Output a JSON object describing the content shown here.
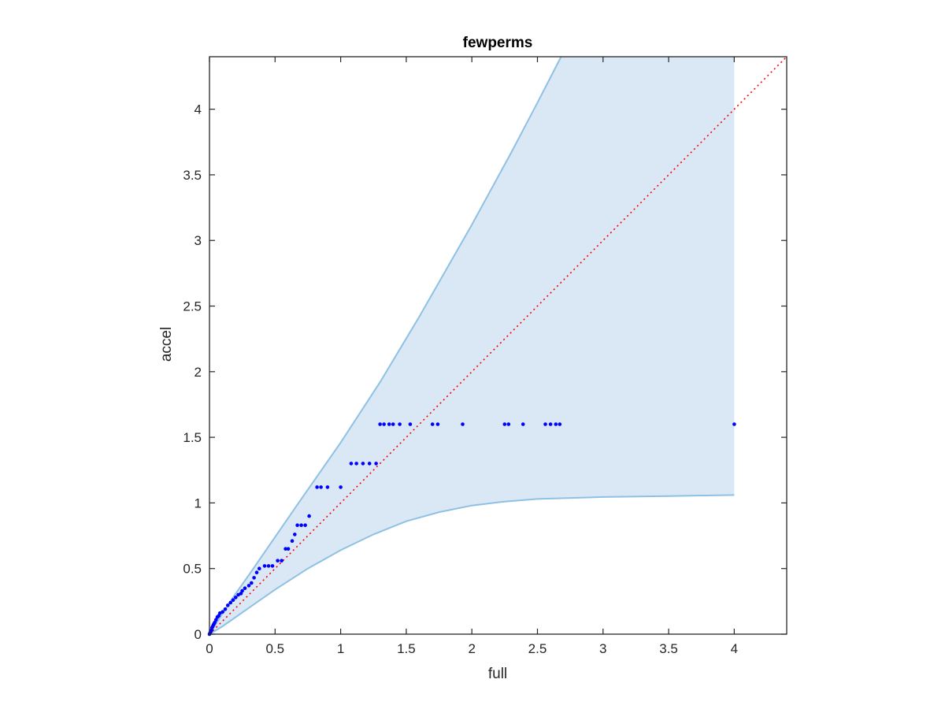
{
  "chart_data": {
    "type": "scatter",
    "title": "fewperms",
    "xlabel": "full",
    "ylabel": "accel",
    "xlim": [
      0,
      4.4
    ],
    "ylim": [
      0,
      4.4
    ],
    "xticks": [
      0,
      0.5,
      1,
      1.5,
      2,
      2.5,
      3,
      3.5,
      4
    ],
    "yticks": [
      0,
      0.5,
      1,
      1.5,
      2,
      2.5,
      3,
      3.5,
      4
    ],
    "xtick_labels": [
      "0",
      "0.5",
      "1",
      "1.5",
      "2",
      "2.5",
      "3",
      "3.5",
      "4"
    ],
    "ytick_labels": [
      "0",
      "0.5",
      "1",
      "1.5",
      "2",
      "2.5",
      "3",
      "3.5",
      "4"
    ],
    "grid": false,
    "box": true,
    "colors": {
      "points": "#0000ff",
      "band_fill": "#d9e8f4",
      "band_edge": "#8ec1e3",
      "reference_line": "#ff0000",
      "axes": "#262626"
    },
    "band": {
      "upper": [
        {
          "x": 0,
          "y": 0
        },
        {
          "x": 0.1,
          "y": 0.16
        },
        {
          "x": 0.2,
          "y": 0.31
        },
        {
          "x": 0.3,
          "y": 0.45
        },
        {
          "x": 0.5,
          "y": 0.74
        },
        {
          "x": 0.7,
          "y": 1.03
        },
        {
          "x": 1.0,
          "y": 1.46
        },
        {
          "x": 1.3,
          "y": 1.92
        },
        {
          "x": 1.6,
          "y": 2.42
        },
        {
          "x": 2.0,
          "y": 3.12
        },
        {
          "x": 2.3,
          "y": 3.67
        },
        {
          "x": 2.5,
          "y": 4.05
        },
        {
          "x": 2.68,
          "y": 4.4
        },
        {
          "x": 4.0,
          "y": 4.4
        }
      ],
      "lower": [
        {
          "x": 0,
          "y": 0
        },
        {
          "x": 0.1,
          "y": 0.06
        },
        {
          "x": 0.3,
          "y": 0.2
        },
        {
          "x": 0.5,
          "y": 0.34
        },
        {
          "x": 0.75,
          "y": 0.5
        },
        {
          "x": 1.0,
          "y": 0.64
        },
        {
          "x": 1.25,
          "y": 0.76
        },
        {
          "x": 1.5,
          "y": 0.86
        },
        {
          "x": 1.75,
          "y": 0.93
        },
        {
          "x": 2.0,
          "y": 0.98
        },
        {
          "x": 2.25,
          "y": 1.01
        },
        {
          "x": 2.5,
          "y": 1.03
        },
        {
          "x": 3.0,
          "y": 1.045
        },
        {
          "x": 3.5,
          "y": 1.052
        },
        {
          "x": 4.0,
          "y": 1.06
        }
      ]
    },
    "reference_line": {
      "style": "dotted",
      "points": [
        {
          "x": 0,
          "y": 0
        },
        {
          "x": 4.4,
          "y": 4.4
        }
      ]
    },
    "series": [
      {
        "points": [
          {
            "x": 0.0,
            "y": 0.0
          },
          {
            "x": 0.005,
            "y": 0.01
          },
          {
            "x": 0.01,
            "y": 0.02
          },
          {
            "x": 0.015,
            "y": 0.03
          },
          {
            "x": 0.02,
            "y": 0.05
          },
          {
            "x": 0.025,
            "y": 0.06
          },
          {
            "x": 0.03,
            "y": 0.07
          },
          {
            "x": 0.035,
            "y": 0.08
          },
          {
            "x": 0.04,
            "y": 0.09
          },
          {
            "x": 0.05,
            "y": 0.11
          },
          {
            "x": 0.06,
            "y": 0.13
          },
          {
            "x": 0.07,
            "y": 0.14
          },
          {
            "x": 0.08,
            "y": 0.16
          },
          {
            "x": 0.1,
            "y": 0.17
          },
          {
            "x": 0.12,
            "y": 0.19
          },
          {
            "x": 0.14,
            "y": 0.22
          },
          {
            "x": 0.16,
            "y": 0.24
          },
          {
            "x": 0.18,
            "y": 0.26
          },
          {
            "x": 0.2,
            "y": 0.28
          },
          {
            "x": 0.22,
            "y": 0.3
          },
          {
            "x": 0.24,
            "y": 0.31
          },
          {
            "x": 0.25,
            "y": 0.33
          },
          {
            "x": 0.27,
            "y": 0.35
          },
          {
            "x": 0.3,
            "y": 0.37
          },
          {
            "x": 0.32,
            "y": 0.39
          },
          {
            "x": 0.34,
            "y": 0.43
          },
          {
            "x": 0.36,
            "y": 0.47
          },
          {
            "x": 0.38,
            "y": 0.5
          },
          {
            "x": 0.42,
            "y": 0.52
          },
          {
            "x": 0.45,
            "y": 0.52
          },
          {
            "x": 0.48,
            "y": 0.52
          },
          {
            "x": 0.52,
            "y": 0.56
          },
          {
            "x": 0.55,
            "y": 0.56
          },
          {
            "x": 0.58,
            "y": 0.65
          },
          {
            "x": 0.6,
            "y": 0.65
          },
          {
            "x": 0.63,
            "y": 0.71
          },
          {
            "x": 0.65,
            "y": 0.76
          },
          {
            "x": 0.67,
            "y": 0.83
          },
          {
            "x": 0.7,
            "y": 0.83
          },
          {
            "x": 0.73,
            "y": 0.83
          },
          {
            "x": 0.76,
            "y": 0.9
          },
          {
            "x": 0.82,
            "y": 1.12
          },
          {
            "x": 0.85,
            "y": 1.12
          },
          {
            "x": 0.9,
            "y": 1.12
          },
          {
            "x": 1.0,
            "y": 1.12
          },
          {
            "x": 1.08,
            "y": 1.3
          },
          {
            "x": 1.12,
            "y": 1.3
          },
          {
            "x": 1.17,
            "y": 1.3
          },
          {
            "x": 1.22,
            "y": 1.3
          },
          {
            "x": 1.27,
            "y": 1.3
          },
          {
            "x": 1.3,
            "y": 1.6
          },
          {
            "x": 1.33,
            "y": 1.6
          },
          {
            "x": 1.37,
            "y": 1.6
          },
          {
            "x": 1.4,
            "y": 1.6
          },
          {
            "x": 1.45,
            "y": 1.6
          },
          {
            "x": 1.53,
            "y": 1.6
          },
          {
            "x": 1.7,
            "y": 1.6
          },
          {
            "x": 1.74,
            "y": 1.6
          },
          {
            "x": 1.93,
            "y": 1.6
          },
          {
            "x": 2.25,
            "y": 1.6
          },
          {
            "x": 2.28,
            "y": 1.6
          },
          {
            "x": 2.39,
            "y": 1.6
          },
          {
            "x": 2.56,
            "y": 1.6
          },
          {
            "x": 2.6,
            "y": 1.6
          },
          {
            "x": 2.64,
            "y": 1.6
          },
          {
            "x": 2.67,
            "y": 1.6
          },
          {
            "x": 4.0,
            "y": 1.6
          }
        ]
      }
    ]
  }
}
